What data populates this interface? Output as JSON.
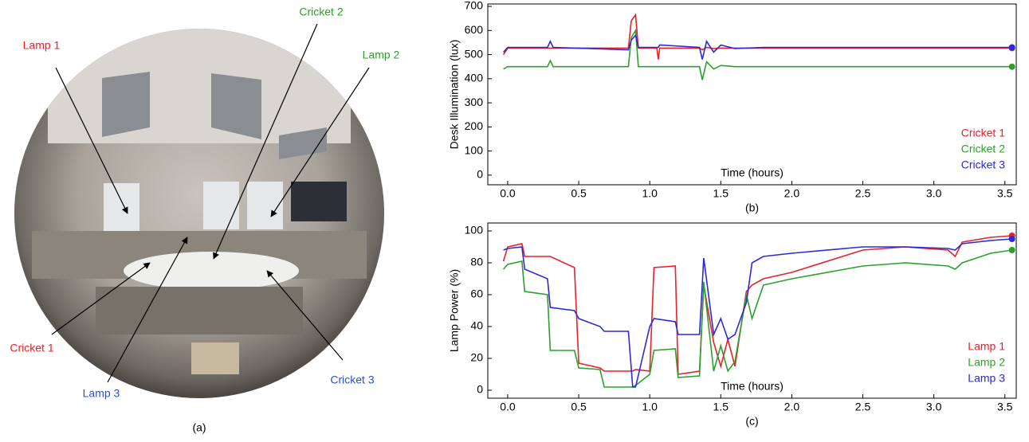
{
  "photo": {
    "labels": [
      {
        "text": "Lamp 1",
        "color": "#e8202a"
      },
      {
        "text": "Cricket 2",
        "color": "#2ca02c"
      },
      {
        "text": "Lamp 2",
        "color": "#2ca02c"
      },
      {
        "text": "Cricket 1",
        "color": "#e8202a"
      },
      {
        "text": "Lamp 3",
        "color": "#2a4fd6"
      },
      {
        "text": "Cricket 3",
        "color": "#2a4fd6"
      }
    ],
    "caption": "(a)"
  },
  "chart_data": [
    {
      "type": "line",
      "caption": "(b)",
      "x_label": "Time (hours)",
      "y_label": "Desk Illumination (lux)",
      "xlim": [
        -0.14,
        3.58
      ],
      "ylim": [
        -40,
        710
      ],
      "xticks": [
        {
          "value": 0,
          "label": "0.0"
        },
        0.5,
        {
          "value": 1,
          "label": "1.0"
        },
        1.5,
        {
          "value": 2,
          "label": "2.0"
        },
        2.5,
        {
          "value": 3,
          "label": "3.0"
        },
        3.5
      ],
      "yticks": [
        0,
        100,
        200,
        300,
        400,
        500,
        600,
        700
      ],
      "legend": "lower right",
      "end_markers": true,
      "x": [
        -0.03,
        0.0,
        0.28,
        0.3,
        0.32,
        0.85,
        0.87,
        0.9,
        0.92,
        1.05,
        1.06,
        1.07,
        1.35,
        1.37,
        1.4,
        1.45,
        1.5,
        1.6,
        1.8,
        2.0,
        3.55
      ],
      "series": [
        {
          "name": "Cricket 1",
          "color": "#e8202a",
          "values": [
            500,
            527,
            527,
            527,
            527,
            527,
            640,
            665,
            527,
            527,
            480,
            527,
            527,
            520,
            530,
            525,
            527,
            527,
            527,
            527,
            527
          ]
        },
        {
          "name": "Cricket 2",
          "color": "#2ca02c",
          "values": [
            440,
            450,
            450,
            475,
            450,
            450,
            570,
            600,
            450,
            450,
            450,
            450,
            450,
            395,
            470,
            440,
            455,
            450,
            450,
            450,
            450
          ]
        },
        {
          "name": "Cricket 3",
          "color": "#2a2ad6",
          "values": [
            510,
            530,
            530,
            555,
            530,
            520,
            560,
            580,
            530,
            530,
            530,
            540,
            530,
            480,
            555,
            510,
            540,
            525,
            530,
            530,
            530
          ]
        }
      ]
    },
    {
      "type": "line",
      "caption": "(c)",
      "x_label": "Time (hours)",
      "y_label": "Lamp Power (%)",
      "xlim": [
        -0.14,
        3.58
      ],
      "ylim": [
        -5,
        105
      ],
      "xticks": [
        {
          "value": 0,
          "label": "0.0"
        },
        0.5,
        {
          "value": 1,
          "label": "1.0"
        },
        1.5,
        {
          "value": 2,
          "label": "2.0"
        },
        2.5,
        {
          "value": 3,
          "label": "3.0"
        },
        3.5
      ],
      "yticks": [
        0,
        20,
        40,
        60,
        80,
        100
      ],
      "legend": "lower right",
      "end_markers": true,
      "x": [
        -0.03,
        0.0,
        0.1,
        0.12,
        0.28,
        0.3,
        0.47,
        0.5,
        0.65,
        0.68,
        0.85,
        0.88,
        0.9,
        1.0,
        1.03,
        1.18,
        1.2,
        1.35,
        1.38,
        1.45,
        1.5,
        1.55,
        1.6,
        1.68,
        1.72,
        1.8,
        2.0,
        2.5,
        2.8,
        3.1,
        3.15,
        3.2,
        3.4,
        3.55
      ],
      "series": [
        {
          "name": "Lamp 1",
          "color": "#e8202a",
          "values": [
            81,
            90,
            92,
            84,
            84,
            84,
            77,
            17,
            14,
            12,
            12,
            12,
            13,
            12,
            77,
            78,
            10,
            12,
            66,
            30,
            15,
            32,
            15,
            62,
            66,
            70,
            74,
            88,
            90,
            88,
            84,
            93,
            96,
            97
          ]
        },
        {
          "name": "Lamp 2",
          "color": "#2ca02c",
          "values": [
            76,
            79,
            81,
            62,
            60,
            25,
            25,
            14,
            13,
            2,
            2,
            2,
            3,
            10,
            25,
            26,
            8,
            9,
            68,
            12,
            28,
            12,
            18,
            60,
            45,
            66,
            70,
            78,
            80,
            78,
            76,
            80,
            86,
            88
          ]
        },
        {
          "name": "Lamp 3",
          "color": "#2a2ad6",
          "values": [
            88,
            89,
            90,
            76,
            70,
            52,
            50,
            45,
            40,
            37,
            37,
            2,
            2,
            40,
            45,
            43,
            35,
            35,
            83,
            35,
            45,
            32,
            35,
            55,
            80,
            84,
            86,
            90,
            90,
            89,
            88,
            92,
            94,
            95
          ]
        }
      ]
    }
  ]
}
